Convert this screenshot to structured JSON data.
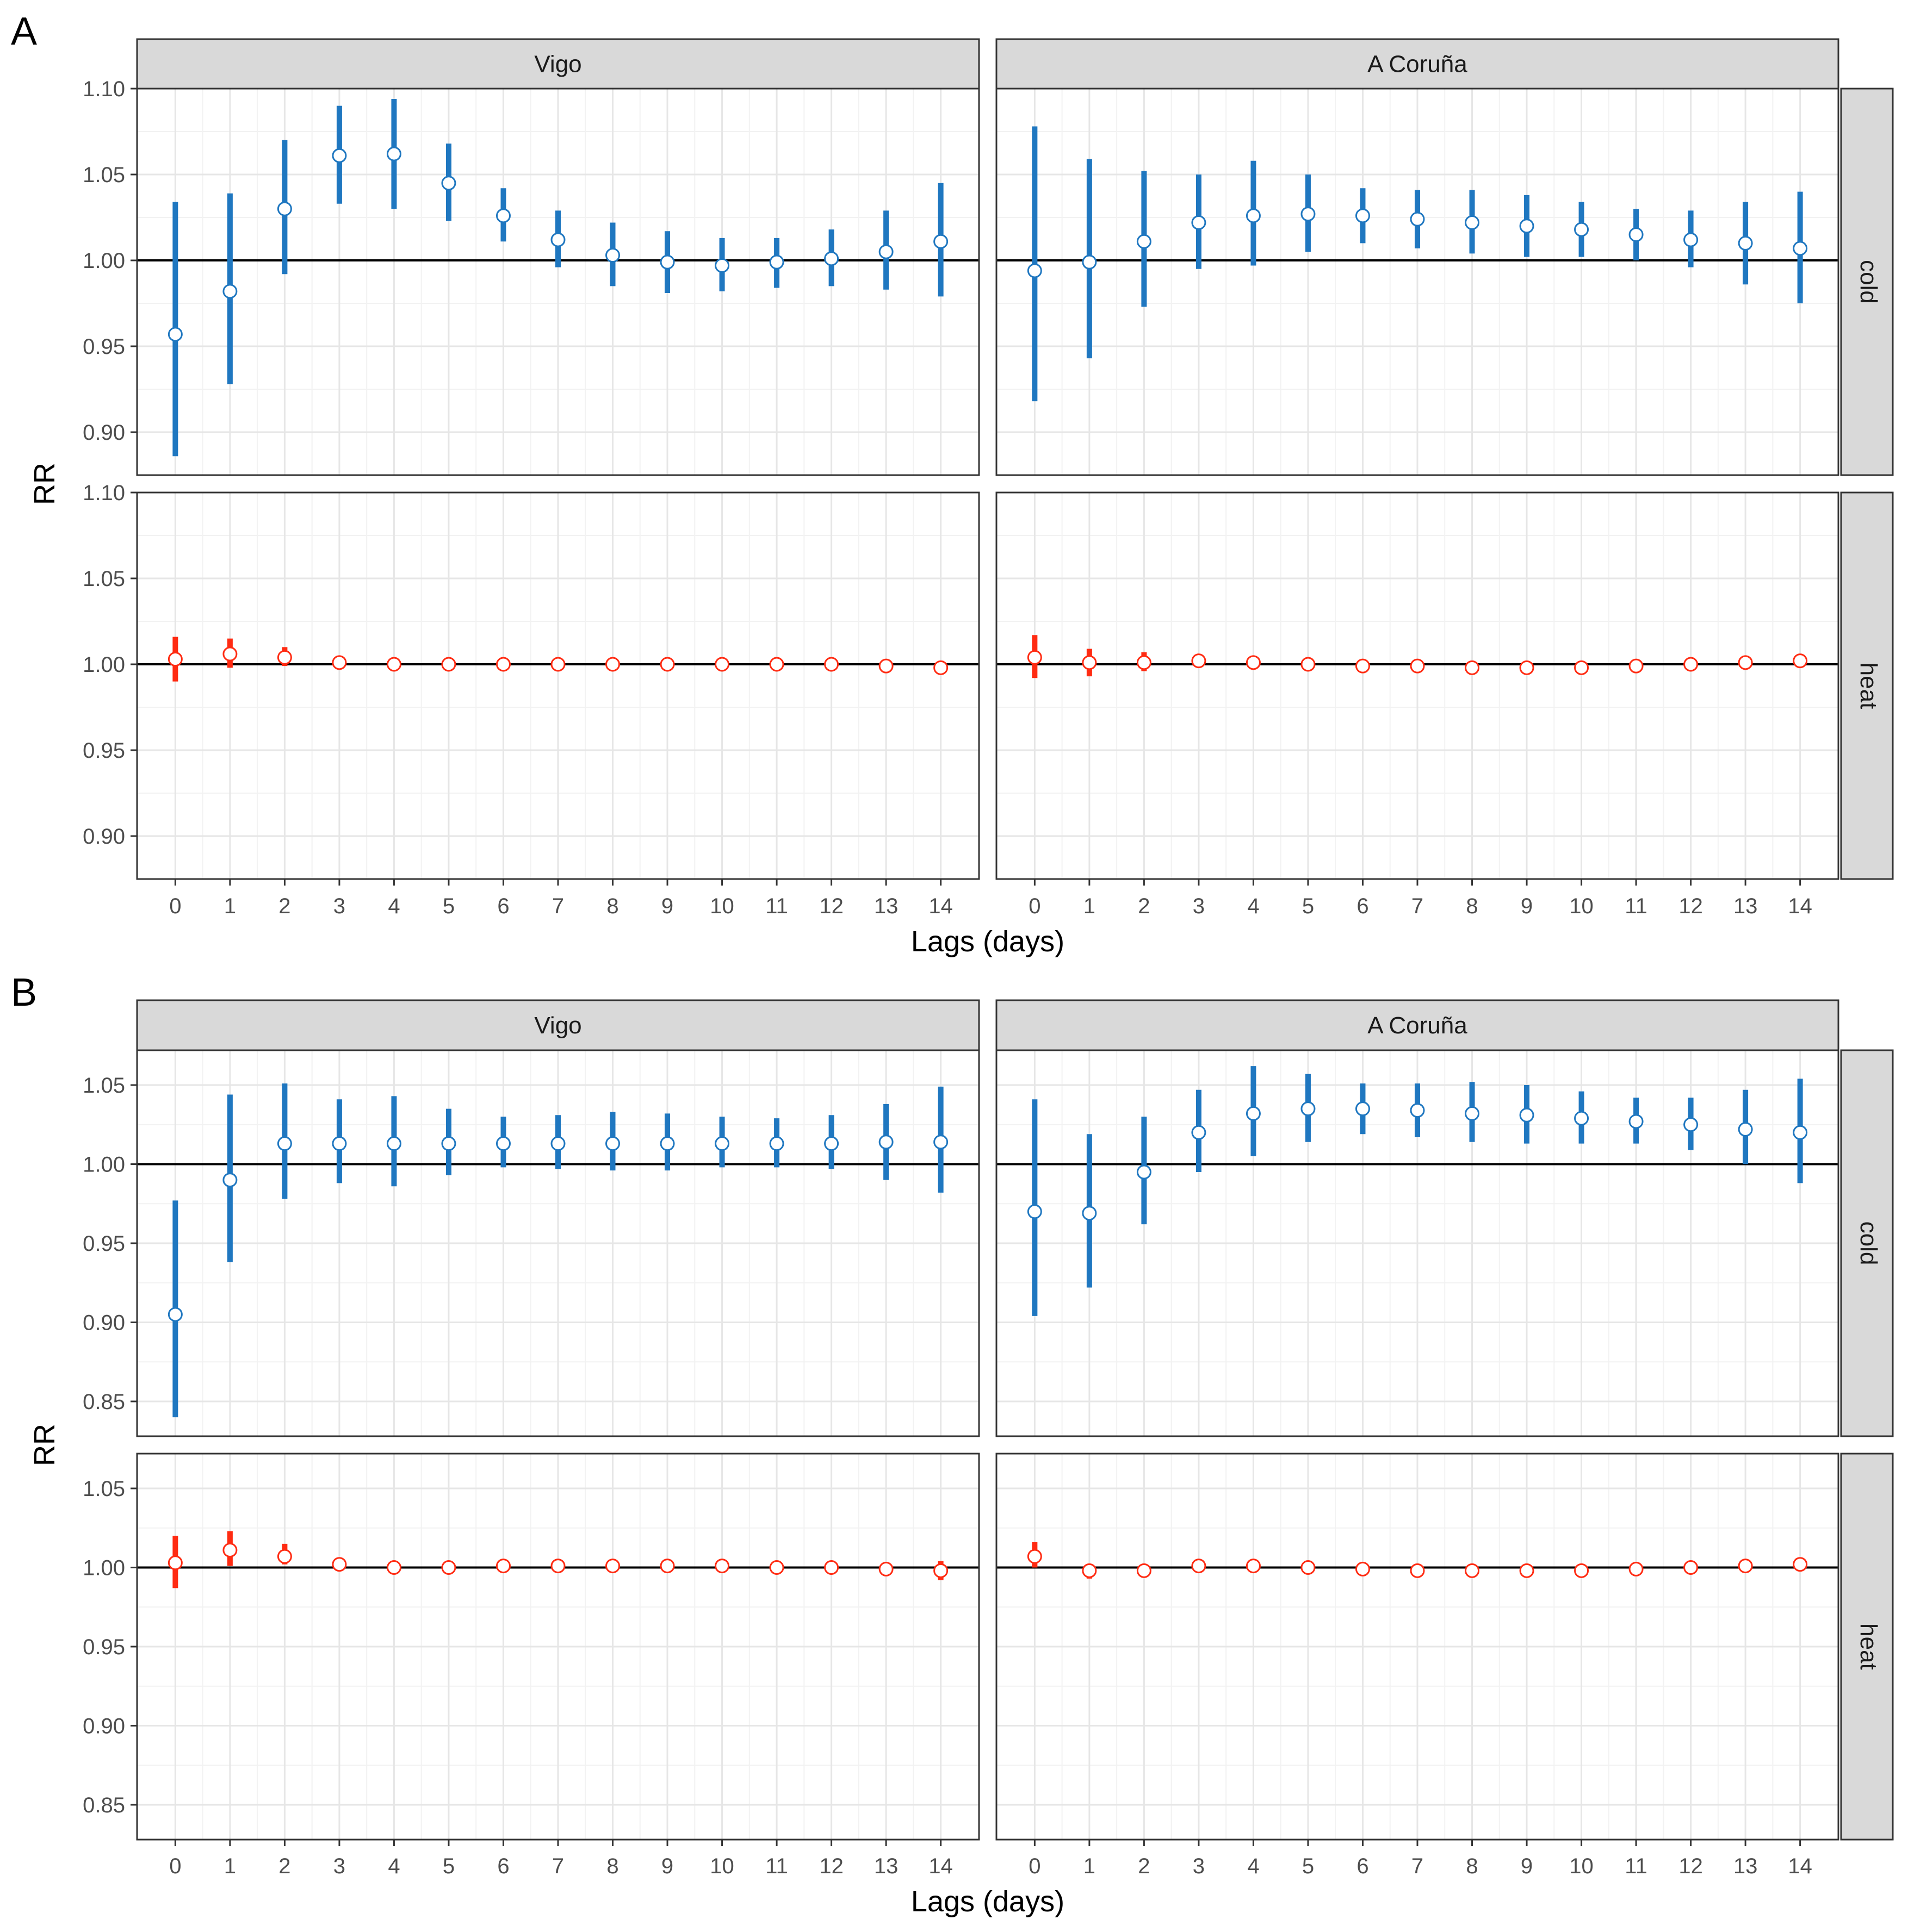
{
  "chart_data": [
    {
      "tag": "A",
      "type": "scatter",
      "subtype": "pointrange",
      "xlabel": "Lags (days)",
      "ylabel": "RR",
      "ylim": [
        0.875,
        1.1
      ],
      "yticks": [
        0.9,
        0.95,
        1.0,
        1.05,
        1.1
      ],
      "ytick_labels": [
        "0.90",
        "0.95",
        "1.00",
        "1.05",
        "1.10"
      ],
      "xlim": [
        -0.7,
        14.7
      ],
      "x": [
        0,
        1,
        2,
        3,
        4,
        5,
        6,
        7,
        8,
        9,
        10,
        11,
        12,
        13,
        14
      ],
      "x_labels": [
        "0",
        "1",
        "2",
        "3",
        "4",
        "5",
        "6",
        "7",
        "8",
        "9",
        "10",
        "11",
        "12",
        "13",
        "14"
      ],
      "columns": [
        "Vigo",
        "A Coruña"
      ],
      "rows": [
        "cold",
        "heat"
      ],
      "reference_line": 1.0,
      "grid": true,
      "series_colors": {
        "cold": "#1f77c0",
        "heat": "#ff2b12"
      },
      "panels": [
        {
          "column": "Vigo",
          "row": "cold",
          "rr": [
            0.957,
            0.982,
            1.03,
            1.061,
            1.062,
            1.045,
            1.026,
            1.012,
            1.003,
            0.999,
            0.997,
            0.999,
            1.001,
            1.005,
            1.011
          ],
          "lower": [
            0.886,
            0.928,
            0.992,
            1.033,
            1.03,
            1.023,
            1.011,
            0.996,
            0.985,
            0.981,
            0.982,
            0.984,
            0.985,
            0.983,
            0.979
          ],
          "upper": [
            1.034,
            1.039,
            1.07,
            1.09,
            1.094,
            1.068,
            1.042,
            1.029,
            1.022,
            1.017,
            1.013,
            1.013,
            1.018,
            1.029,
            1.045
          ]
        },
        {
          "column": "A Coruña",
          "row": "cold",
          "rr": [
            0.994,
            0.999,
            1.011,
            1.022,
            1.026,
            1.027,
            1.026,
            1.024,
            1.022,
            1.02,
            1.018,
            1.015,
            1.012,
            1.01,
            1.007
          ],
          "lower": [
            0.918,
            0.943,
            0.973,
            0.995,
            0.997,
            1.005,
            1.01,
            1.007,
            1.004,
            1.002,
            1.002,
            1.0,
            0.996,
            0.986,
            0.975
          ],
          "upper": [
            1.078,
            1.059,
            1.052,
            1.05,
            1.058,
            1.05,
            1.042,
            1.041,
            1.041,
            1.038,
            1.034,
            1.03,
            1.029,
            1.034,
            1.04
          ]
        },
        {
          "column": "Vigo",
          "row": "heat",
          "rr": [
            1.003,
            1.006,
            1.004,
            1.001,
            1.0,
            1.0,
            1.0,
            1.0,
            1.0,
            1.0,
            1.0,
            1.0,
            1.0,
            0.999,
            0.998
          ],
          "lower": [
            0.99,
            0.998,
            0.999,
            0.999,
            0.999,
            0.999,
            0.999,
            0.999,
            0.999,
            0.999,
            0.999,
            0.999,
            0.999,
            0.998,
            0.995
          ],
          "upper": [
            1.016,
            1.015,
            1.01,
            1.003,
            1.001,
            1.001,
            1.001,
            1.001,
            1.001,
            1.001,
            1.001,
            1.001,
            1.001,
            1.001,
            1.002
          ]
        },
        {
          "column": "A Coruña",
          "row": "heat",
          "rr": [
            1.004,
            1.001,
            1.001,
            1.002,
            1.001,
            1.0,
            0.999,
            0.999,
            0.998,
            0.998,
            0.998,
            0.999,
            1.0,
            1.001,
            1.002
          ],
          "lower": [
            0.992,
            0.993,
            0.996,
            1.0,
            1.0,
            0.999,
            0.998,
            0.997,
            0.997,
            0.997,
            0.997,
            0.998,
            0.999,
            1.0,
            0.999
          ],
          "upper": [
            1.017,
            1.009,
            1.007,
            1.004,
            1.003,
            1.002,
            1.001,
            1.0,
            1.0,
            1.0,
            1.0,
            1.0,
            1.001,
            1.003,
            1.006
          ]
        }
      ]
    },
    {
      "tag": "B",
      "type": "scatter",
      "subtype": "pointrange",
      "xlabel": "Lags (days)",
      "ylabel": "RR",
      "ylim": [
        0.828,
        1.072
      ],
      "yticks": [
        0.85,
        0.9,
        0.95,
        1.0,
        1.05
      ],
      "ytick_labels": [
        "0.85",
        "0.90",
        "0.95",
        "1.00",
        "1.05"
      ],
      "xlim": [
        -0.7,
        14.7
      ],
      "x": [
        0,
        1,
        2,
        3,
        4,
        5,
        6,
        7,
        8,
        9,
        10,
        11,
        12,
        13,
        14
      ],
      "x_labels": [
        "0",
        "1",
        "2",
        "3",
        "4",
        "5",
        "6",
        "7",
        "8",
        "9",
        "10",
        "11",
        "12",
        "13",
        "14"
      ],
      "columns": [
        "Vigo",
        "A Coruña"
      ],
      "rows": [
        "cold",
        "heat"
      ],
      "reference_line": 1.0,
      "grid": true,
      "series_colors": {
        "cold": "#1f77c0",
        "heat": "#ff2b12"
      },
      "panels": [
        {
          "column": "Vigo",
          "row": "cold",
          "rr": [
            0.905,
            0.99,
            1.013,
            1.013,
            1.013,
            1.013,
            1.013,
            1.013,
            1.013,
            1.013,
            1.013,
            1.013,
            1.013,
            1.014,
            1.014
          ],
          "lower": [
            0.84,
            0.938,
            0.978,
            0.988,
            0.986,
            0.993,
            0.998,
            0.997,
            0.996,
            0.996,
            0.998,
            0.998,
            0.997,
            0.99,
            0.982
          ],
          "upper": [
            0.977,
            1.044,
            1.051,
            1.041,
            1.043,
            1.035,
            1.03,
            1.031,
            1.033,
            1.032,
            1.03,
            1.029,
            1.031,
            1.038,
            1.049
          ]
        },
        {
          "column": "A Coruña",
          "row": "cold",
          "rr": [
            0.97,
            0.969,
            0.995,
            1.02,
            1.032,
            1.035,
            1.035,
            1.034,
            1.032,
            1.031,
            1.029,
            1.027,
            1.025,
            1.022,
            1.02
          ],
          "lower": [
            0.904,
            0.922,
            0.962,
            0.995,
            1.005,
            1.014,
            1.019,
            1.017,
            1.014,
            1.013,
            1.013,
            1.013,
            1.009,
            1.0,
            0.988
          ],
          "upper": [
            1.041,
            1.019,
            1.03,
            1.047,
            1.062,
            1.057,
            1.051,
            1.051,
            1.052,
            1.05,
            1.046,
            1.042,
            1.042,
            1.047,
            1.054
          ]
        },
        {
          "column": "Vigo",
          "row": "heat",
          "rr": [
            1.003,
            1.011,
            1.007,
            1.002,
            1.0,
            1.0,
            1.001,
            1.001,
            1.001,
            1.001,
            1.001,
            1.0,
            1.0,
            0.999,
            0.998
          ],
          "lower": [
            0.987,
            1.001,
            1.002,
            0.999,
            0.996,
            0.999,
            0.999,
            0.999,
            0.999,
            0.999,
            0.999,
            0.999,
            0.999,
            0.997,
            0.992
          ],
          "upper": [
            1.02,
            1.023,
            1.015,
            1.004,
            1.003,
            1.001,
            1.002,
            1.002,
            1.002,
            1.002,
            1.002,
            1.001,
            1.001,
            1.001,
            1.004
          ]
        },
        {
          "column": "A Coruña",
          "row": "heat",
          "rr": [
            1.007,
            0.998,
            0.998,
            1.001,
            1.001,
            1.0,
            0.999,
            0.998,
            0.998,
            0.998,
            0.998,
            0.999,
            1.0,
            1.001,
            1.002
          ],
          "lower": [
            1.0,
            0.993,
            0.997,
            1.0,
            1.0,
            0.999,
            0.998,
            0.997,
            0.997,
            0.997,
            0.997,
            0.998,
            0.999,
            1.0,
            1.0
          ],
          "upper": [
            1.016,
            1.002,
            1.0,
            1.003,
            1.003,
            1.002,
            1.0,
            1.0,
            1.0,
            1.0,
            1.0,
            1.0,
            1.001,
            1.003,
            1.004
          ]
        }
      ]
    }
  ]
}
